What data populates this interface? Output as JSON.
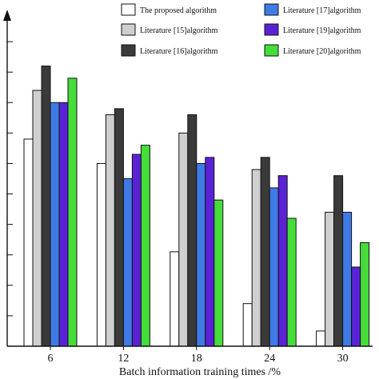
{
  "chart_data": {
    "type": "bar",
    "title": "",
    "xlabel": "Batch information training times /%",
    "ylabel": "",
    "categories": [
      "6",
      "12",
      "18",
      "24",
      "30"
    ],
    "ylim": [
      0,
      11
    ],
    "y_tick_labels_visible": false,
    "grid": false,
    "legend": "top-right",
    "series": [
      {
        "name": "The proposed algorithm",
        "color": "#ffffff",
        "values": [
          6.8,
          6.0,
          3.1,
          1.4,
          0.5
        ]
      },
      {
        "name": "Literature [15]algorithm",
        "color": "#cfcfcf",
        "values": [
          8.4,
          7.6,
          7.0,
          5.8,
          4.4
        ]
      },
      {
        "name": "Literature [16]algorithm",
        "color": "#3a3a3a",
        "values": [
          9.2,
          7.8,
          7.6,
          6.2,
          5.6
        ]
      },
      {
        "name": "Literature [17]algorithm",
        "color": "#3f7be6",
        "values": [
          8.0,
          5.5,
          6.0,
          5.2,
          4.4
        ]
      },
      {
        "name": "Literature [19]algorithm",
        "color": "#5a22d6",
        "values": [
          8.0,
          6.3,
          6.2,
          5.6,
          2.6
        ]
      },
      {
        "name": "Literature [20]algorithm",
        "color": "#44dd3a",
        "values": [
          8.8,
          6.6,
          4.8,
          4.2,
          3.4
        ]
      }
    ]
  }
}
